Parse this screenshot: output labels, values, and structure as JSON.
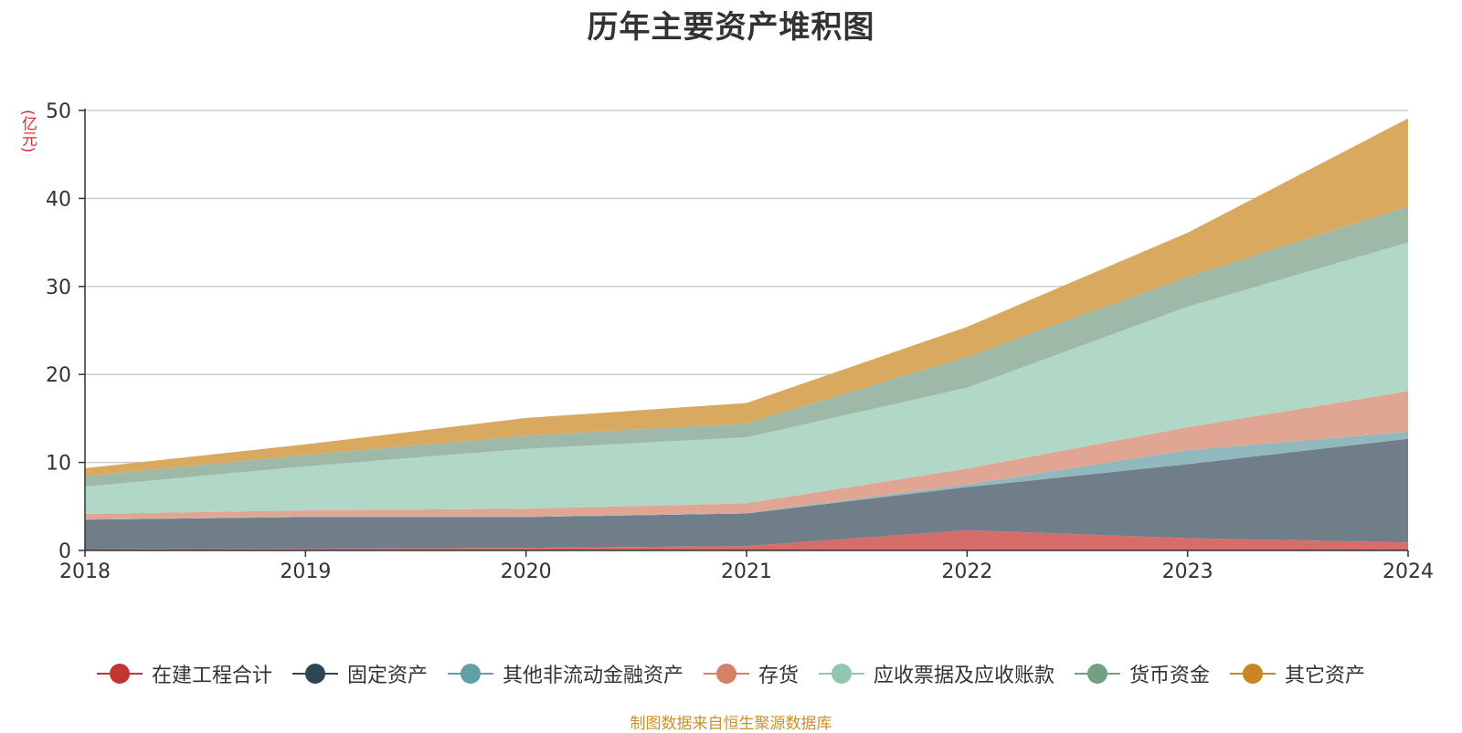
{
  "chart_data": {
    "type": "area",
    "stacked": true,
    "title": "历年主要资产堆积图",
    "y_unit": "(亿元)",
    "categories": [
      "2018",
      "2019",
      "2020",
      "2021",
      "2022",
      "2023",
      "2024"
    ],
    "y_ticks": [
      "0",
      "10",
      "20",
      "30",
      "40",
      "50"
    ],
    "ylim": [
      0,
      50
    ],
    "grid": true,
    "legend_position": "bottom",
    "series": [
      {
        "name": "在建工程合计",
        "color": "#c23531",
        "fill": "#d66d6a",
        "values": [
          0.1,
          0.2,
          0.3,
          0.5,
          2.3,
          1.4,
          0.9
        ]
      },
      {
        "name": "固定资产",
        "color": "#2f4554",
        "fill": "#6f7e89",
        "values": [
          3.4,
          3.6,
          3.5,
          3.7,
          4.9,
          8.4,
          11.8
        ]
      },
      {
        "name": "其他非流动金融资产",
        "color": "#61a0a8",
        "fill": "#91b9bd",
        "values": [
          0.05,
          0.05,
          0.05,
          0.05,
          0.3,
          1.6,
          0.8
        ]
      },
      {
        "name": "存货",
        "color": "#d48265",
        "fill": "#e0a593",
        "values": [
          0.6,
          0.7,
          0.9,
          1.1,
          1.8,
          2.6,
          4.6
        ]
      },
      {
        "name": "应收票据及应收账款",
        "color": "#91c7ae",
        "fill": "#b1d8c6",
        "values": [
          3.1,
          5.0,
          6.8,
          7.5,
          9.2,
          13.7,
          16.9
        ]
      },
      {
        "name": "货币资金",
        "color": "#749f83",
        "fill": "#9eb9a7",
        "values": [
          1.2,
          1.3,
          1.5,
          1.6,
          3.5,
          3.4,
          4.1
        ]
      },
      {
        "name": "其它资产",
        "color": "#ca8622",
        "fill": "#d9a95f",
        "values": [
          0.9,
          1.2,
          2.0,
          2.3,
          3.4,
          5.0,
          10.0
        ]
      }
    ]
  },
  "source_note": "制图数据来自恒生聚源数据库"
}
